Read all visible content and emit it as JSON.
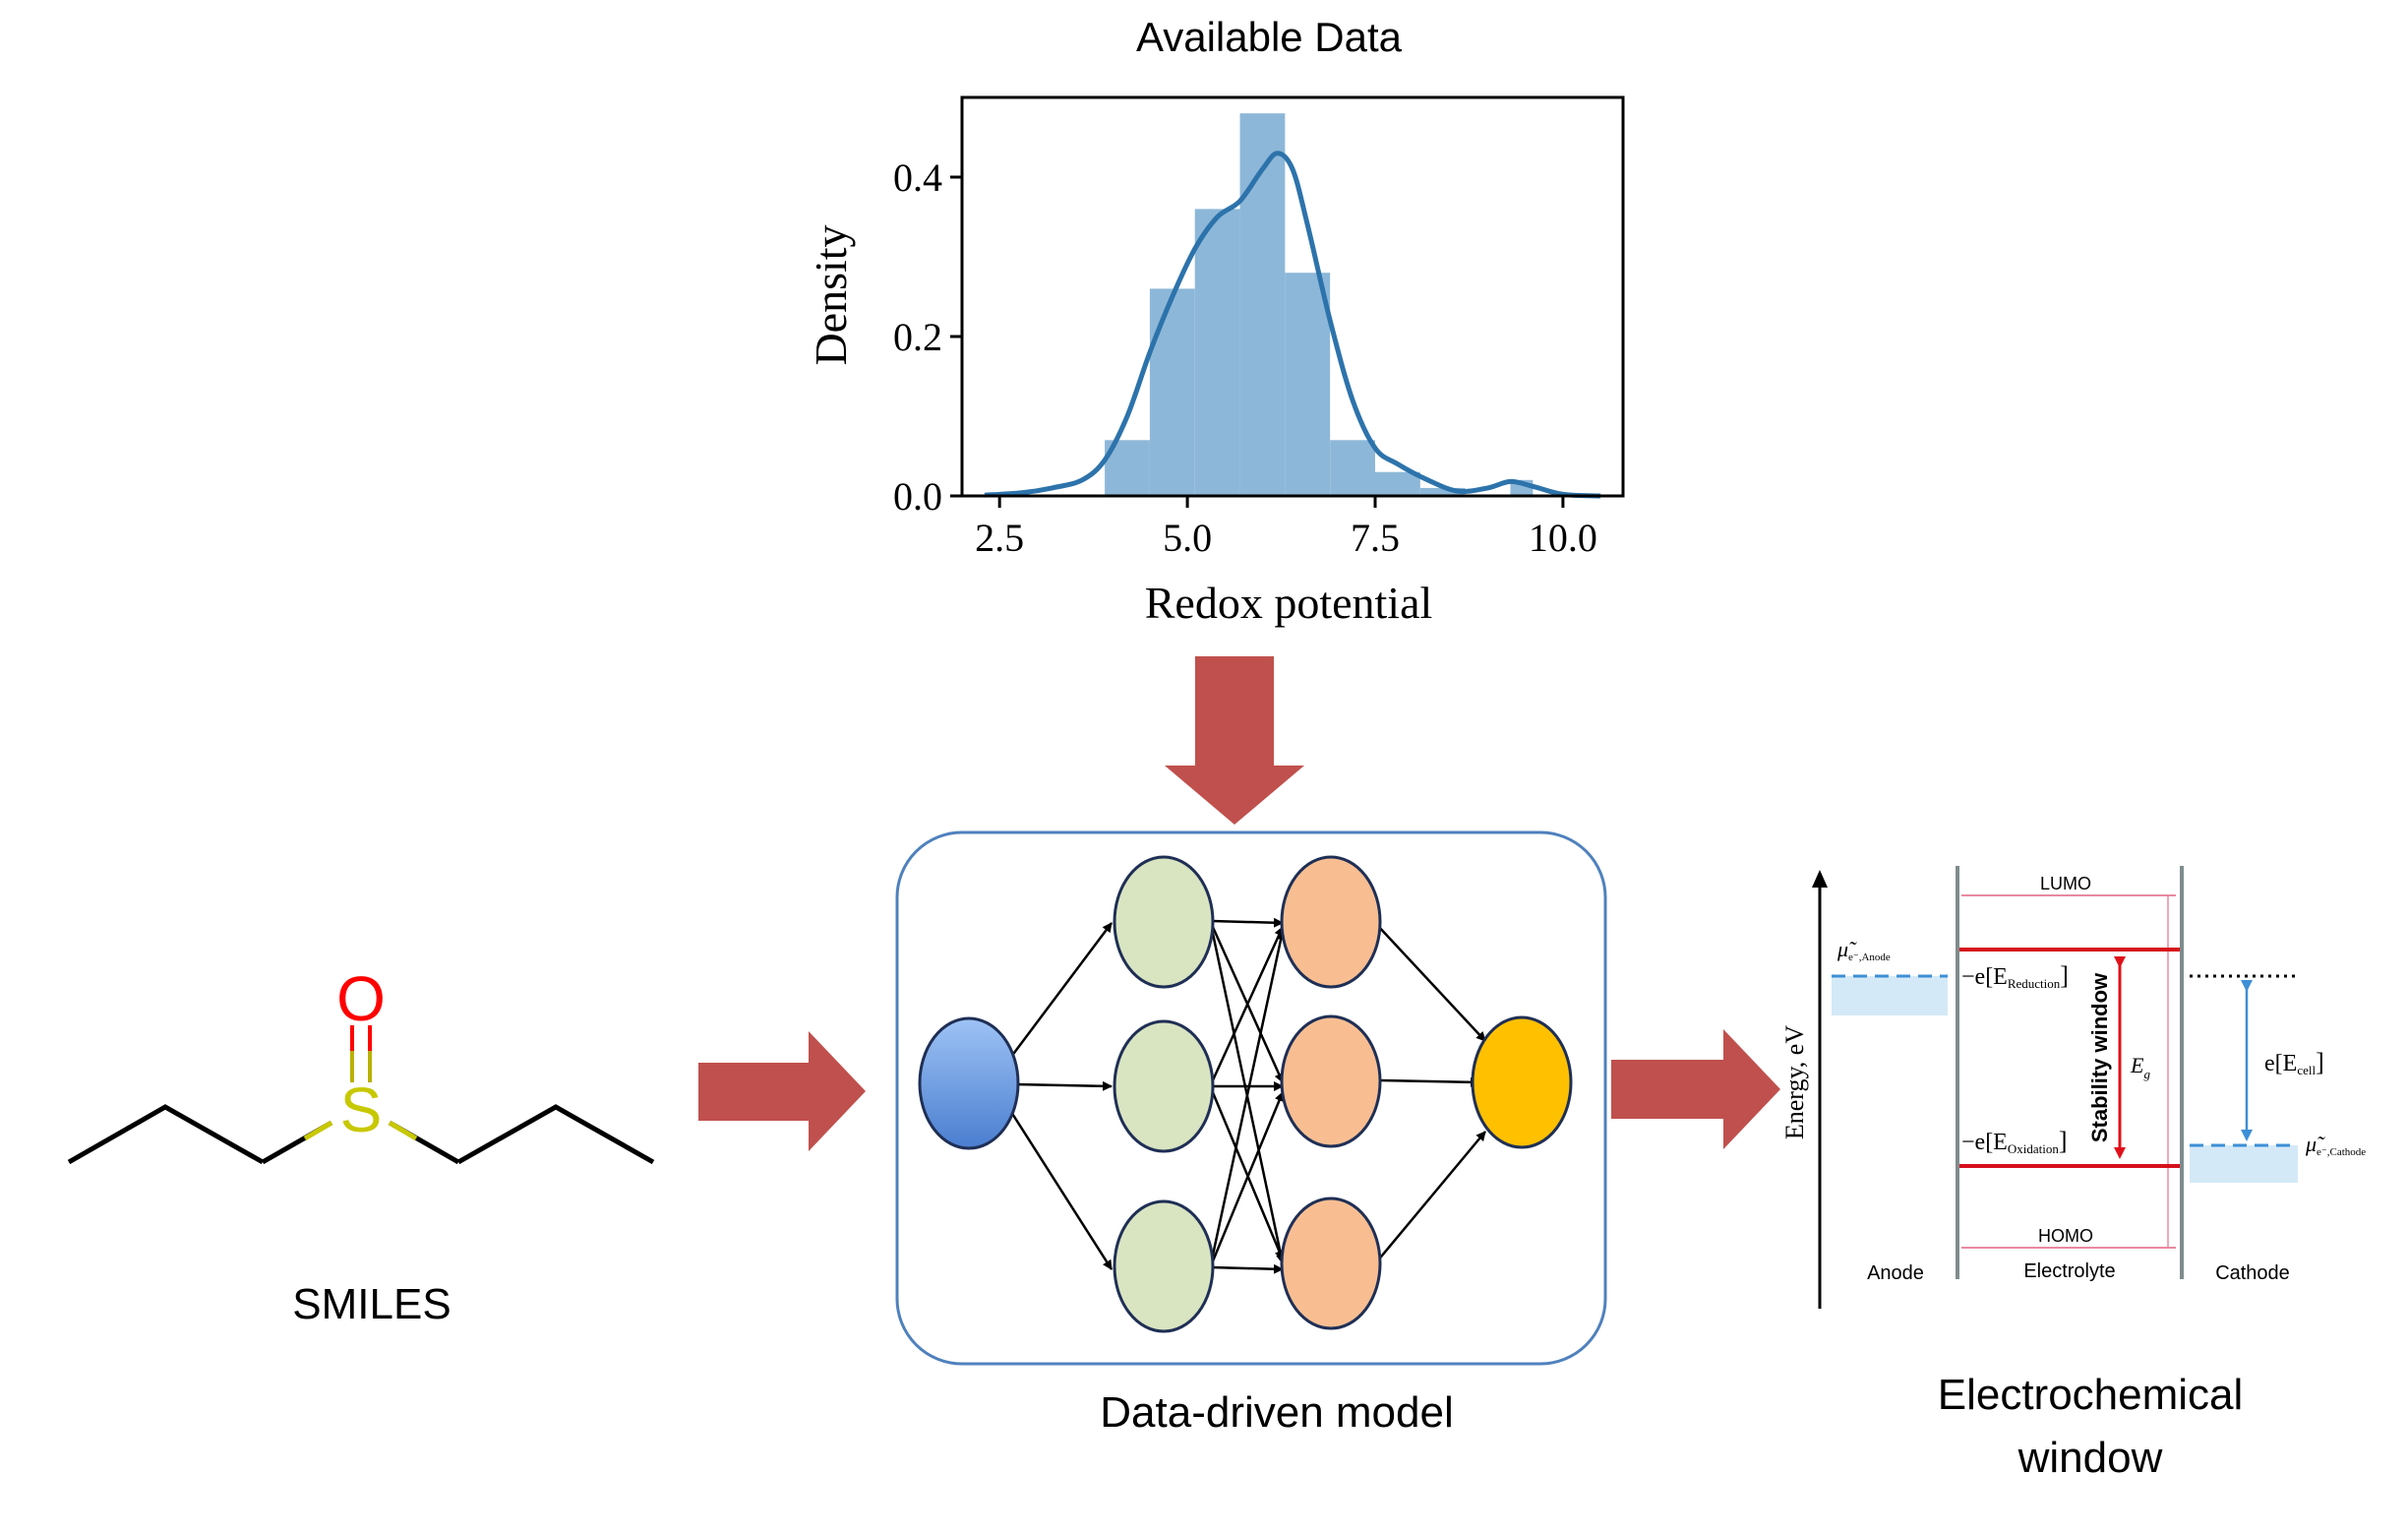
{
  "histogram": {
    "title": "Available Data",
    "xlabel": "Redox potential",
    "ylabel": "Density"
  },
  "chart_data": {
    "type": "bar",
    "title": "Available Data",
    "xlabel": "Redox potential",
    "ylabel": "Density",
    "xlim": [
      2.0,
      10.8
    ],
    "ylim": [
      0.0,
      0.5
    ],
    "xticks": [
      "2.5",
      "5.0",
      "7.5",
      "10.0"
    ],
    "xtick_values": [
      2.5,
      5.0,
      7.5,
      10.0
    ],
    "yticks": [
      "0.0",
      "0.2",
      "0.4"
    ],
    "ytick_values": [
      0.0,
      0.2,
      0.4
    ],
    "bins": [
      {
        "x0": 3.9,
        "x1": 4.5,
        "value": 0.07
      },
      {
        "x0": 4.5,
        "x1": 5.1,
        "value": 0.26
      },
      {
        "x0": 5.1,
        "x1": 5.7,
        "value": 0.36
      },
      {
        "x0": 5.7,
        "x1": 6.3,
        "value": 0.48
      },
      {
        "x0": 6.3,
        "x1": 6.9,
        "value": 0.28
      },
      {
        "x0": 6.9,
        "x1": 7.5,
        "value": 0.07
      },
      {
        "x0": 7.5,
        "x1": 8.1,
        "value": 0.03
      },
      {
        "x0": 8.1,
        "x1": 8.7,
        "value": 0.01
      },
      {
        "x0": 8.7,
        "x1": 9.3,
        "value": 0.0
      },
      {
        "x0": 9.3,
        "x1": 9.6,
        "value": 0.02
      }
    ],
    "kde": {
      "x": [
        2.3,
        2.8,
        3.2,
        3.6,
        3.9,
        4.2,
        4.5,
        4.8,
        5.1,
        5.4,
        5.7,
        6.0,
        6.2,
        6.4,
        6.6,
        6.9,
        7.2,
        7.5,
        7.8,
        8.2,
        8.6,
        9.0,
        9.3,
        9.6,
        10.0,
        10.5
      ],
      "y": [
        0.001,
        0.004,
        0.01,
        0.02,
        0.045,
        0.1,
        0.18,
        0.25,
        0.31,
        0.35,
        0.37,
        0.41,
        0.43,
        0.41,
        0.34,
        0.22,
        0.12,
        0.06,
        0.04,
        0.02,
        0.006,
        0.01,
        0.018,
        0.012,
        0.002,
        0.0
      ]
    },
    "bar_color": "#8db7d8",
    "line_color": "#2d73ab"
  },
  "molecule": {
    "oxygen": "O",
    "sulfur": "S",
    "caption": "SMILES",
    "oxygen_color": "#ff0000",
    "sulfur_color": "#c8c800"
  },
  "model": {
    "caption": "Data-driven model",
    "input_color": "#6b9de0",
    "hidden1_color": "#d9e4c1",
    "hidden2_color": "#f8be92",
    "output_color": "#ffc000"
  },
  "arrows": {
    "color": "#c0504d"
  },
  "window_diagram": {
    "lumo": "LUMO",
    "homo": "HOMO",
    "stability": "Stability window",
    "yaxis": "Energy, eV",
    "anode": "Anode",
    "electrolyte": "Electrolyte",
    "cathode": "Cathode",
    "eg": "E",
    "eg_sub": "g",
    "e_reduction_prefix": "−e[E",
    "e_reduction_sub": "Reduction",
    "e_oxidation_prefix": "−e[E",
    "e_oxidation_sub": "Oxidation",
    "e_cell_prefix": "e[E",
    "e_cell_sub": "cell",
    "mu_anode": "μ̃",
    "mu_anode_sub": "e⁻,Anode",
    "mu_cathode": "μ̃",
    "mu_cathode_sub": "e⁻,Cathode",
    "bracket_close": "]",
    "caption_line1": "Electrochemical",
    "caption_line2": "window"
  }
}
